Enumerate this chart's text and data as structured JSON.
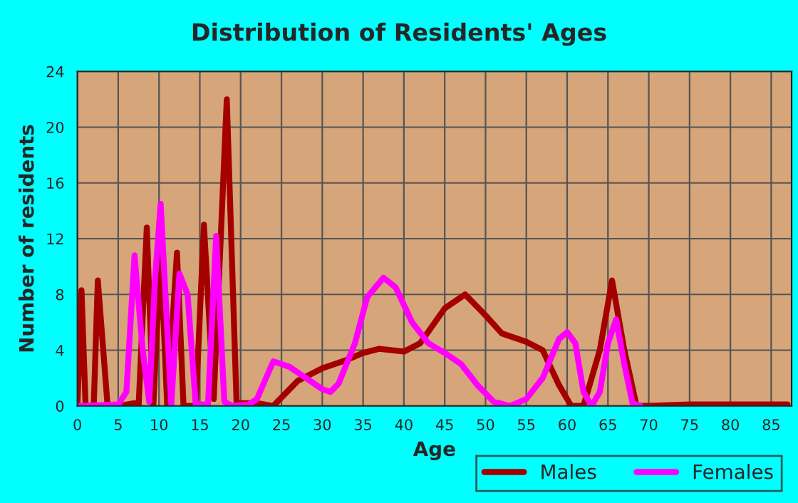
{
  "chart_data": {
    "type": "line",
    "title": "Distribution of Residents' Ages",
    "xlabel": "Age",
    "ylabel": "Number of residents",
    "xlim": [
      0,
      87.5
    ],
    "xticks": [
      0,
      5,
      10,
      15,
      20,
      25,
      30,
      35,
      40,
      45,
      50,
      55,
      60,
      65,
      70,
      75,
      80,
      85
    ],
    "ylim": [
      0,
      24
    ],
    "yticks": [
      0,
      4,
      8,
      12,
      16,
      20,
      24
    ],
    "grid": true,
    "legend": "bottom right",
    "marker": "none",
    "line_style": "solid",
    "series": [
      {
        "name": "Males",
        "color": "#a50000",
        "x": [
          0,
          0.5,
          1,
          2,
          2.5,
          3.7,
          5,
          7,
          7.5,
          8.5,
          9.3,
          10.2,
          11,
          12.2,
          13,
          14.5,
          15.5,
          16.7,
          18.3,
          19.5,
          22,
          24,
          27,
          30,
          33,
          35,
          37,
          40,
          42,
          45,
          47.5,
          50,
          52,
          55,
          57,
          59,
          60.5,
          62,
          64,
          65.5,
          67,
          68.5,
          70,
          75,
          85,
          87
        ],
        "values": [
          0,
          8.3,
          0,
          0,
          9,
          0,
          0,
          0.2,
          0,
          12.8,
          0,
          11,
          0,
          11,
          0,
          0,
          13,
          0.5,
          22,
          0.2,
          0.2,
          0,
          1.8,
          2.7,
          3.3,
          3.8,
          4.1,
          3.9,
          4.5,
          7,
          8,
          6.5,
          5.2,
          4.6,
          4,
          1.5,
          0,
          0,
          4,
          9,
          4,
          0,
          0,
          0.1,
          0.1,
          0.1
        ]
      },
      {
        "name": "Females",
        "color": "#ff00ff",
        "x": [
          0,
          1,
          5,
          6,
          7,
          8,
          8.8,
          9.5,
          10.2,
          11.5,
          12.5,
          13.5,
          14.5,
          16,
          17,
          18,
          19,
          21,
          22,
          24,
          26,
          28,
          30,
          31,
          32,
          34,
          35.5,
          37.5,
          39,
          41,
          43,
          45,
          47,
          49,
          51,
          53,
          55,
          57,
          59,
          60,
          61,
          62,
          63,
          64,
          65,
          66,
          67,
          68,
          69
        ],
        "values": [
          0,
          0,
          0.1,
          1,
          10.8,
          4,
          0.3,
          9,
          14.5,
          0.1,
          9.5,
          8,
          0.1,
          0.1,
          12.2,
          0.3,
          0,
          0.1,
          0.5,
          3.2,
          2.8,
          2,
          1.2,
          1,
          1.6,
          4.5,
          7.8,
          9.2,
          8.5,
          6,
          4.5,
          3.8,
          3,
          1.5,
          0.3,
          0,
          0.5,
          2,
          4.8,
          5.3,
          4.5,
          1,
          0,
          1,
          4.5,
          6.2,
          3,
          0.2,
          0
        ]
      }
    ]
  }
}
